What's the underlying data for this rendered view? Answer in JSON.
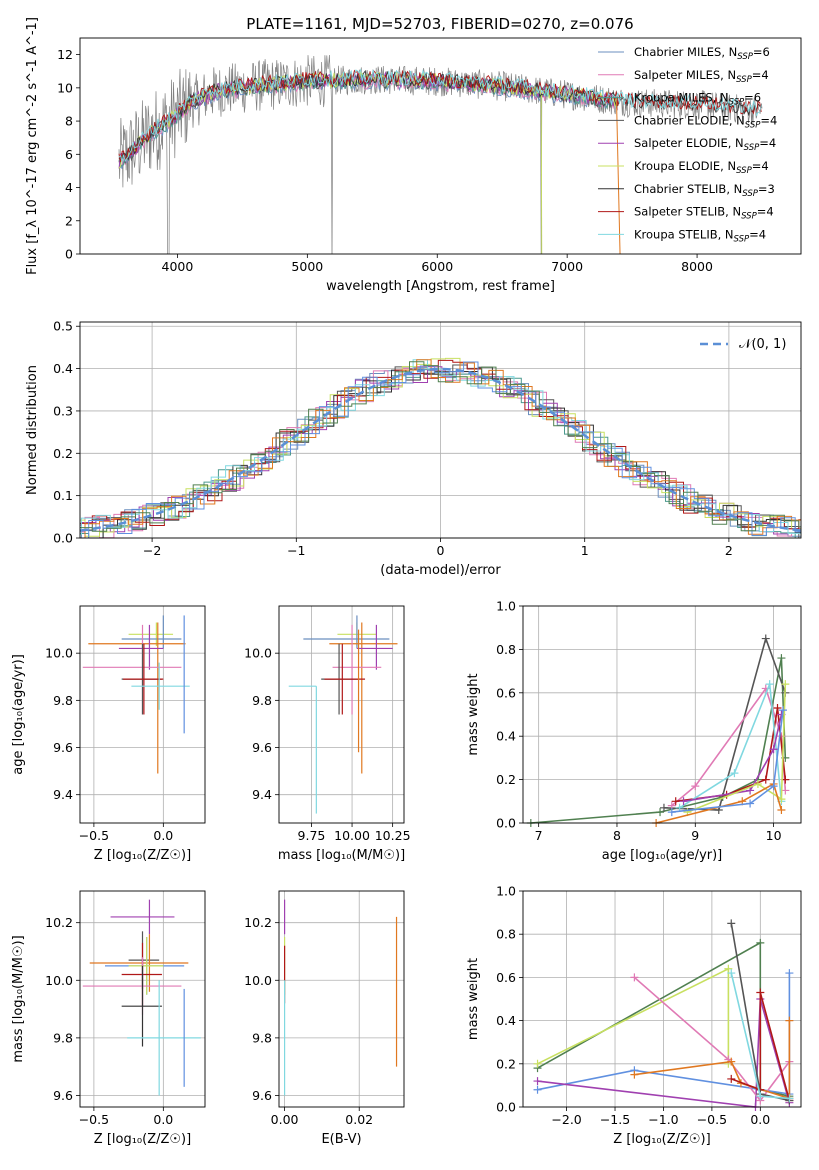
{
  "figure_title": "PLATE=1161, MJD=52703, FIBERID=0270, z=0.076",
  "colors": {
    "Chabrier MILES": "#6b8fbf",
    "Salpeter MILES": "#e07ab5",
    "Kroupa MILES": "#4c9a8f",
    "Chabrier ELODIE": "#555555",
    "Salpeter ELODIE": "#a040b0",
    "Kroupa ELODIE": "#c8e060",
    "Chabrier STELIB": "#333333",
    "Salpeter STELIB": "#b01818",
    "Kroupa STELIB": "#80d8e0",
    "spectrum": "#808080",
    "orange_model": "#e07820",
    "blue_model": "#6090e0",
    "green_model": "#508050",
    "gaussian": "#5b8fd6"
  },
  "chart_data": [
    {
      "id": "spectrum",
      "type": "line",
      "title": "PLATE=1161, MJD=52703, FIBERID=0270, z=0.076",
      "xlabel": "wavelength [Angstrom, rest frame]",
      "ylabel": "Flux [f_λ 10^-17 erg cm^-2 s^-1 A^-1]",
      "xlim": [
        3250,
        8800
      ],
      "ylim": [
        0,
        13
      ],
      "xticks": [
        "4000",
        "5000",
        "6000",
        "7000",
        "8000"
      ],
      "yticks": [
        "0",
        "2",
        "4",
        "6",
        "8",
        "10",
        "12"
      ],
      "grid": false,
      "legend_position": "top-right",
      "legend": [
        {
          "label": "Chabrier MILES, N",
          "sub": "SSP",
          "suffix": "=6",
          "color": "#6b8fbf"
        },
        {
          "label": "Salpeter MILES, N",
          "sub": "SSP",
          "suffix": "=4",
          "color": "#e07ab5"
        },
        {
          "label": "Kroupa MILES, N",
          "sub": "SSP",
          "suffix": "=6",
          "color": "#4c9a8f"
        },
        {
          "label": "Chabrier ELODIE, N",
          "sub": "SSP",
          "suffix": "=4",
          "color": "#555555"
        },
        {
          "label": "Salpeter ELODIE, N",
          "sub": "SSP",
          "suffix": "=4",
          "color": "#a040b0"
        },
        {
          "label": "Kroupa ELODIE, N",
          "sub": "SSP",
          "suffix": "=4",
          "color": "#c8e060"
        },
        {
          "label": "Chabrier STELIB, N",
          "sub": "SSP",
          "suffix": "=3",
          "color": "#333333"
        },
        {
          "label": "Salpeter STELIB, N",
          "sub": "SSP",
          "suffix": "=4",
          "color": "#b01818"
        },
        {
          "label": "Kroupa STELIB, N",
          "sub": "SSP",
          "suffix": "=4",
          "color": "#80d8e0"
        }
      ],
      "continuum": {
        "x": [
          3550,
          3650,
          3800,
          3950,
          4100,
          4300,
          4600,
          5000,
          5500,
          6000,
          6500,
          7000,
          7300,
          7500,
          8000,
          8500
        ],
        "y": [
          5.5,
          6.2,
          7.3,
          8.1,
          9.1,
          9.8,
          10.1,
          10.4,
          10.5,
          10.4,
          10.1,
          9.6,
          9.3,
          9.1,
          9.0,
          8.6
        ]
      },
      "series_xrange": {
        "models_end": 7400,
        "stelib_end": 8500
      }
    },
    {
      "id": "residual-hist",
      "type": "histogram",
      "xlabel": "(data-model)/error",
      "ylabel": "Normed distribution",
      "xlim": [
        -2.5,
        2.5
      ],
      "ylim": [
        0,
        0.51
      ],
      "xticks": [
        "−2",
        "−1",
        "0",
        "1",
        "2"
      ],
      "yticks": [
        "0.0",
        "0.1",
        "0.2",
        "0.3",
        "0.4",
        "0.5"
      ],
      "grid": true,
      "legend_position": "top-right",
      "legend_label": "𝒩(0, 1)",
      "bin_width": 0.1
    },
    {
      "id": "age-vs-Z",
      "type": "errorbar",
      "xlabel": "Z [log₁₀(Z/Z☉)]",
      "ylabel": "age  [log₁₀(age/yr)]",
      "xlim": [
        -0.6,
        0.3
      ],
      "ylim": [
        9.28,
        10.2
      ],
      "xticks": [
        "−0.5",
        "0.0"
      ],
      "xtick_values": [
        -0.5,
        0.0
      ],
      "yticks": [
        "9.4",
        "9.6",
        "9.8",
        "10.0"
      ],
      "ytick_values": [
        9.4,
        9.6,
        9.8,
        10.0
      ],
      "grid": true,
      "points": [
        {
          "x": -0.05,
          "y": 10.08,
          "xerr": [
            0.2,
            0.12
          ],
          "yerr": [
            0.05,
            0.05
          ],
          "color": "#c8e060"
        },
        {
          "x": 0.0,
          "y": 10.06,
          "xerr": [
            0.3,
            0.13
          ],
          "yerr": [
            0.04,
            0.1
          ],
          "color": "#6b8fbf"
        },
        {
          "x": -0.04,
          "y": 10.04,
          "xerr": [
            0.5,
            0.2
          ],
          "yerr": [
            0.55,
            0.09
          ],
          "color": "#e07820"
        },
        {
          "x": -0.1,
          "y": 10.02,
          "xerr": [
            0.22,
            0.1
          ],
          "yerr": [
            0.09,
            0.1
          ],
          "color": "#a040b0"
        },
        {
          "x": -0.15,
          "y": 9.94,
          "xerr": [
            0.43,
            0.28
          ],
          "yerr": [
            0.2,
            0.18
          ],
          "color": "#e07ab5"
        },
        {
          "x": -0.15,
          "y": 9.89,
          "xerr": [
            0.15,
            0.14
          ],
          "yerr": [
            0.15,
            0.15
          ],
          "color": "#555555"
        },
        {
          "x": -0.14,
          "y": 9.89,
          "xerr": [
            0.15,
            0.14
          ],
          "yerr": [
            0.15,
            0.15
          ],
          "color": "#b01818"
        },
        {
          "x": -0.03,
          "y": 9.86,
          "xerr": [
            0.2,
            0.22
          ],
          "yerr": [
            0.1,
            0.1
          ],
          "color": "#80d8e0"
        },
        {
          "x": 0.15,
          "y": 9.9,
          "xerr": [
            0.0,
            0.0
          ],
          "yerr": [
            0.24,
            0.26
          ],
          "color": "#6090e0"
        }
      ]
    },
    {
      "id": "age-vs-mass",
      "type": "errorbar",
      "xlabel": "mass [log₁₀(M/M☉)]",
      "xlim": [
        9.55,
        10.32
      ],
      "ylim": [
        9.28,
        10.2
      ],
      "xticks": [
        "9.75",
        "10.00",
        "10.25"
      ],
      "xtick_values": [
        9.75,
        10.0,
        10.25
      ],
      "yticks": [
        "9.4",
        "9.6",
        "9.8",
        "10.0"
      ],
      "ytick_values": [
        9.4,
        9.6,
        9.8,
        10.0
      ],
      "grid": true,
      "points": [
        {
          "x": 10.03,
          "y": 10.08,
          "xerr": [
            0.12,
            0.12
          ],
          "yerr": [
            0.05,
            0.05
          ],
          "color": "#c8e060"
        },
        {
          "x": 10.03,
          "y": 10.06,
          "xerr": [
            0.33,
            0.2
          ],
          "yerr": [
            0.04,
            0.1
          ],
          "color": "#6b8fbf"
        },
        {
          "x": 10.06,
          "y": 10.04,
          "xerr": [
            0.2,
            0.22
          ],
          "yerr": [
            0.55,
            0.09
          ],
          "color": "#e07820"
        },
        {
          "x": 10.15,
          "y": 10.02,
          "xerr": [
            0.12,
            0.1
          ],
          "yerr": [
            0.09,
            0.1
          ],
          "color": "#a040b0"
        },
        {
          "x": 10.0,
          "y": 9.94,
          "xerr": [
            0.12,
            0.18
          ],
          "yerr": [
            0.2,
            0.18
          ],
          "color": "#e07ab5"
        },
        {
          "x": 9.92,
          "y": 9.89,
          "xerr": [
            0.11,
            0.12
          ],
          "yerr": [
            0.15,
            0.15
          ],
          "color": "#555555"
        },
        {
          "x": 9.94,
          "y": 9.89,
          "xerr": [
            0.11,
            0.14
          ],
          "yerr": [
            0.15,
            0.15
          ],
          "color": "#b01818"
        },
        {
          "x": 9.78,
          "y": 9.86,
          "xerr": [
            0.17,
            0.0
          ],
          "yerr": [
            0.54,
            0.0
          ],
          "color": "#80d8e0"
        },
        {
          "x": 10.04,
          "y": 9.9,
          "xerr": [
            0.0,
            0.0
          ],
          "yerr": [
            0.32,
            0.2
          ],
          "color": "#e07820"
        }
      ]
    },
    {
      "id": "weight-vs-age",
      "type": "line",
      "xlabel": "age  [log₁₀(age/yr)]",
      "ylabel": "mass weight",
      "xlim": [
        6.8,
        10.35
      ],
      "ylim": [
        0,
        1.0
      ],
      "xticks": [
        "7",
        "8",
        "9",
        "10"
      ],
      "xtick_values": [
        7,
        8,
        9,
        10
      ],
      "yticks": [
        "0.0",
        "0.2",
        "0.4",
        "0.6",
        "0.8",
        "1.0"
      ],
      "ytick_values": [
        0,
        0.2,
        0.4,
        0.6,
        0.8,
        1.0
      ],
      "grid": true,
      "series": [
        {
          "x": [
            6.9,
            8.55,
            9.35,
            9.8,
            10.1,
            10.15
          ],
          "y": [
            0.0,
            0.05,
            0.12,
            0.2,
            0.76,
            0.3
          ],
          "color": "#508050"
        },
        {
          "x": [
            8.6,
            9.3,
            9.9,
            10.15
          ],
          "y": [
            0.07,
            0.06,
            0.85,
            0.6
          ],
          "color": "#555555"
        },
        {
          "x": [
            8.7,
            9.0,
            9.9,
            10.1,
            10.15
          ],
          "y": [
            0.08,
            0.17,
            0.62,
            0.4,
            0.15
          ],
          "color": "#e07ab5"
        },
        {
          "x": [
            8.75,
            9.4,
            9.9,
            10.05,
            10.15
          ],
          "y": [
            0.1,
            0.13,
            0.2,
            0.53,
            0.2
          ],
          "color": "#b01818"
        },
        {
          "x": [
            8.8,
            9.5,
            9.95,
            10.1
          ],
          "y": [
            0.07,
            0.23,
            0.64,
            0.1
          ],
          "color": "#80d8e0"
        },
        {
          "x": [
            8.85,
            9.7,
            10.0,
            10.1
          ],
          "y": [
            0.1,
            0.15,
            0.34,
            0.5
          ],
          "color": "#a040b0"
        },
        {
          "x": [
            8.9,
            9.8,
            10.1,
            10.15
          ],
          "y": [
            0.05,
            0.18,
            0.11,
            0.64
          ],
          "color": "#c8e060"
        },
        {
          "x": [
            8.5,
            9.6,
            10.0,
            10.1
          ],
          "y": [
            0.0,
            0.1,
            0.18,
            0.06
          ],
          "color": "#e07820"
        },
        {
          "x": [
            8.7,
            9.7,
            10.0,
            10.12
          ],
          "y": [
            0.05,
            0.09,
            0.17,
            0.52
          ],
          "color": "#6090e0"
        }
      ]
    },
    {
      "id": "mass-vs-Z",
      "type": "errorbar",
      "xlabel": "Z [log₁₀(Z/Z☉)]",
      "ylabel": "mass [log₁₀(M/M☉)]",
      "xlim": [
        -0.6,
        0.3
      ],
      "ylim": [
        9.56,
        10.31
      ],
      "xticks": [
        "−0.5",
        "0.0"
      ],
      "xtick_values": [
        -0.5,
        0.0
      ],
      "yticks": [
        "9.6",
        "9.8",
        "10.0",
        "10.2"
      ],
      "ytick_values": [
        9.6,
        9.8,
        10.0,
        10.2
      ],
      "grid": true,
      "points": [
        {
          "x": -0.1,
          "y": 10.22,
          "xerr": [
            0.28,
            0.18
          ],
          "yerr": [
            0.06,
            0.06
          ],
          "color": "#a040b0"
        },
        {
          "x": -0.15,
          "y": 10.07,
          "xerr": [
            0.1,
            0.12
          ],
          "yerr": [
            0.1,
            0.1
          ],
          "color": "#555555"
        },
        {
          "x": -0.1,
          "y": 10.06,
          "xerr": [
            0.43,
            0.28
          ],
          "yerr": [
            0.1,
            0.1
          ],
          "color": "#e07820"
        },
        {
          "x": -0.12,
          "y": 10.05,
          "xerr": [
            0.3,
            0.27
          ],
          "yerr": [
            0.1,
            0.1
          ],
          "color": "#6090e0"
        },
        {
          "x": -0.12,
          "y": 10.05,
          "xerr": [
            0.13,
            0.12
          ],
          "yerr": [
            0.1,
            0.1
          ],
          "color": "#c8e060"
        },
        {
          "x": -0.15,
          "y": 10.02,
          "xerr": [
            0.15,
            0.14
          ],
          "yerr": [
            0.11,
            0.11
          ],
          "color": "#b01818"
        },
        {
          "x": -0.15,
          "y": 9.98,
          "xerr": [
            0.43,
            0.28
          ],
          "yerr": [
            0.1,
            0.1
          ],
          "color": "#e07ab5"
        },
        {
          "x": -0.15,
          "y": 9.91,
          "xerr": [
            0.15,
            0.14
          ],
          "yerr": [
            0.14,
            0.14
          ],
          "color": "#333333"
        },
        {
          "x": -0.03,
          "y": 9.8,
          "xerr": [
            0.23,
            0.3
          ],
          "yerr": [
            0.2,
            0.2
          ],
          "color": "#80d8e0"
        },
        {
          "x": 0.15,
          "y": 9.8,
          "xerr": [
            0.0,
            0.0
          ],
          "yerr": [
            0.17,
            0.17
          ],
          "color": "#6090e0"
        }
      ]
    },
    {
      "id": "mass-vs-ebv",
      "type": "errorbar",
      "xlabel": "E(B-V)",
      "xlim": [
        -0.0015,
        0.032
      ],
      "ylim": [
        9.56,
        10.31
      ],
      "xticks": [
        "0.00",
        "0.02"
      ],
      "xtick_values": [
        0.0,
        0.02
      ],
      "yticks": [
        "9.6",
        "9.8",
        "10.0",
        "10.2"
      ],
      "ytick_values": [
        9.6,
        9.8,
        10.0,
        10.2
      ],
      "grid": true,
      "points": [
        {
          "x": 0.0,
          "y": 10.22,
          "xerr": [
            0,
            0
          ],
          "yerr": [
            0.06,
            0.06
          ],
          "color": "#a040b0"
        },
        {
          "x": 0.0,
          "y": 10.05,
          "xerr": [
            0,
            0
          ],
          "yerr": [
            0.1,
            0.1
          ],
          "color": "#c8e060"
        },
        {
          "x": 0.0,
          "y": 10.02,
          "xerr": [
            0,
            0
          ],
          "yerr": [
            0.1,
            0.1
          ],
          "color": "#b01818"
        },
        {
          "x": 0.0,
          "y": 9.8,
          "xerr": [
            0,
            0
          ],
          "yerr": [
            0.2,
            0.2
          ],
          "color": "#80d8e0"
        },
        {
          "x": 0.03,
          "y": 9.96,
          "xerr": [
            0,
            0
          ],
          "yerr": [
            0.26,
            0.26
          ],
          "color": "#e07820"
        }
      ]
    },
    {
      "id": "weight-vs-Z",
      "type": "line",
      "xlabel": "Z [log₁₀(Z/Z☉)]",
      "ylabel": "mass weight",
      "xlim": [
        -2.45,
        0.42
      ],
      "ylim": [
        0,
        1.0
      ],
      "xticks": [
        "−2.0",
        "−1.5",
        "−1.0",
        "−0.5",
        "0.0"
      ],
      "xtick_values": [
        -2.0,
        -1.5,
        -1.0,
        -0.5,
        0.0
      ],
      "yticks": [
        "0.0",
        "0.2",
        "0.4",
        "0.6",
        "0.8",
        "1.0"
      ],
      "ytick_values": [
        0,
        0.2,
        0.4,
        0.6,
        0.8,
        1.0
      ],
      "grid": true,
      "series": [
        {
          "x": [
            -2.3,
            0.0,
            0.0,
            0.3
          ],
          "y": [
            0.18,
            0.76,
            0.08,
            0.05
          ],
          "color": "#508050"
        },
        {
          "x": [
            -2.3,
            -0.33,
            -0.33
          ],
          "y": [
            0.2,
            0.64,
            0.2
          ],
          "color": "#c8e060"
        },
        {
          "x": [
            -2.3,
            -1.3,
            0.3,
            0.3
          ],
          "y": [
            0.08,
            0.17,
            0.06,
            0.62
          ],
          "color": "#6090e0"
        },
        {
          "x": [
            -2.3,
            -0.05,
            0.0,
            0.3
          ],
          "y": [
            0.12,
            0.0,
            0.5,
            0.02
          ],
          "color": "#a040b0"
        },
        {
          "x": [
            -1.3,
            -0.33,
            0.0,
            0.3
          ],
          "y": [
            0.6,
            0.22,
            0.03,
            0.21
          ],
          "color": "#e07ab5"
        },
        {
          "x": [
            -1.3,
            -0.3,
            -0.2,
            0.3,
            0.3
          ],
          "y": [
            0.15,
            0.21,
            0.11,
            0.04,
            0.4
          ],
          "color": "#e07820"
        },
        {
          "x": [
            -0.3,
            0.0,
            0.0,
            0.3
          ],
          "y": [
            0.13,
            0.08,
            0.53,
            0.03
          ],
          "color": "#b01818"
        },
        {
          "x": [
            -0.3,
            0.0,
            0.3
          ],
          "y": [
            0.85,
            0.06,
            0.03
          ],
          "color": "#555555"
        },
        {
          "x": [
            -0.3,
            0.0,
            0.3
          ],
          "y": [
            0.62,
            0.05,
            0.04
          ],
          "color": "#80d8e0"
        }
      ]
    }
  ]
}
